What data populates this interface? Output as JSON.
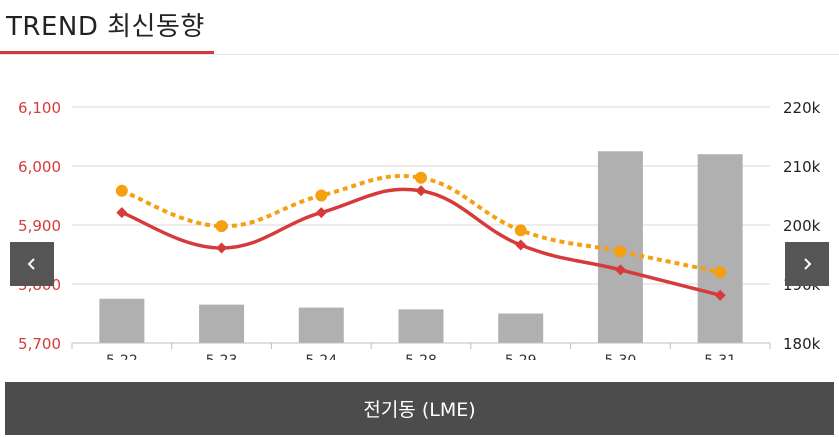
{
  "header": {
    "title": "TREND 최신동향"
  },
  "footer": {
    "label": "전기동 (LME)"
  },
  "nav": {
    "prev_icon": "chevron-left-icon",
    "next_icon": "chevron-right-icon"
  },
  "chart_data": {
    "type": "bar+line",
    "categories": [
      "5-22",
      "5-23",
      "5-24",
      "5-28",
      "5-29",
      "5-30",
      "5-31"
    ],
    "left_axis": {
      "ticks": [
        "6,100",
        "6,000",
        "5,900",
        "5,800",
        "5,700"
      ],
      "tick_values": [
        6100,
        6000,
        5900,
        5800,
        5700
      ],
      "ylim": [
        5700,
        6100
      ],
      "color": "#d63a3a"
    },
    "right_axis": {
      "ticks": [
        "220k",
        "210k",
        "200k",
        "190k",
        "180k"
      ],
      "tick_values": [
        220000,
        210000,
        200000,
        190000,
        180000
      ],
      "ylim": [
        180000,
        220000
      ],
      "color": "#222222"
    },
    "bars": {
      "axis": "right",
      "values": [
        187500,
        186500,
        186000,
        185700,
        185000,
        212500,
        212000
      ],
      "color": "#b0b0b0"
    },
    "lines": [
      {
        "axis": "left",
        "style": "solid",
        "color": "#d63a3a",
        "marker": "diamond",
        "values": [
          5921,
          5861,
          5921,
          5958,
          5866,
          5824,
          5781
        ]
      },
      {
        "axis": "left",
        "style": "dotted",
        "color": "#f5a00f",
        "marker": "circle",
        "values": [
          5958,
          5898,
          5950,
          5980,
          5891,
          5855,
          5820
        ]
      }
    ],
    "grid": true
  }
}
